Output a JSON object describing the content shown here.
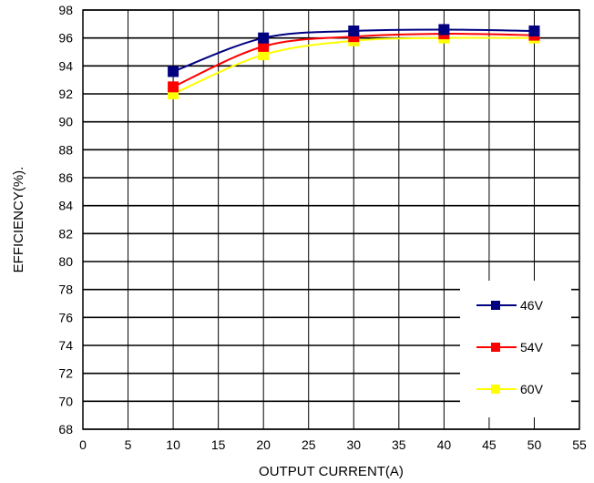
{
  "chart_data": {
    "type": "line",
    "title": "",
    "xlabel": "OUTPUT CURRENT(A)",
    "ylabel": "EFFICIENCY(%).",
    "xlim": [
      0,
      55
    ],
    "ylim": [
      68,
      98
    ],
    "xticks": [
      0,
      5,
      10,
      15,
      20,
      25,
      30,
      35,
      40,
      45,
      50,
      55
    ],
    "yticks": [
      68,
      70,
      72,
      74,
      76,
      78,
      80,
      82,
      84,
      86,
      88,
      90,
      92,
      94,
      96,
      98
    ],
    "grid": true,
    "legend_position": "bottom-right",
    "x": [
      10,
      20,
      30,
      40,
      50
    ],
    "series": [
      {
        "name": "46V",
        "values": [
          93.6,
          96.0,
          96.5,
          96.6,
          96.5
        ],
        "color": "#000080"
      },
      {
        "name": "54V",
        "values": [
          92.5,
          95.4,
          96.1,
          96.3,
          96.2
        ],
        "color": "#ff0000"
      },
      {
        "name": "60V",
        "values": [
          92.0,
          94.8,
          95.8,
          96.0,
          96.0
        ],
        "color": "#ffff00"
      }
    ]
  }
}
